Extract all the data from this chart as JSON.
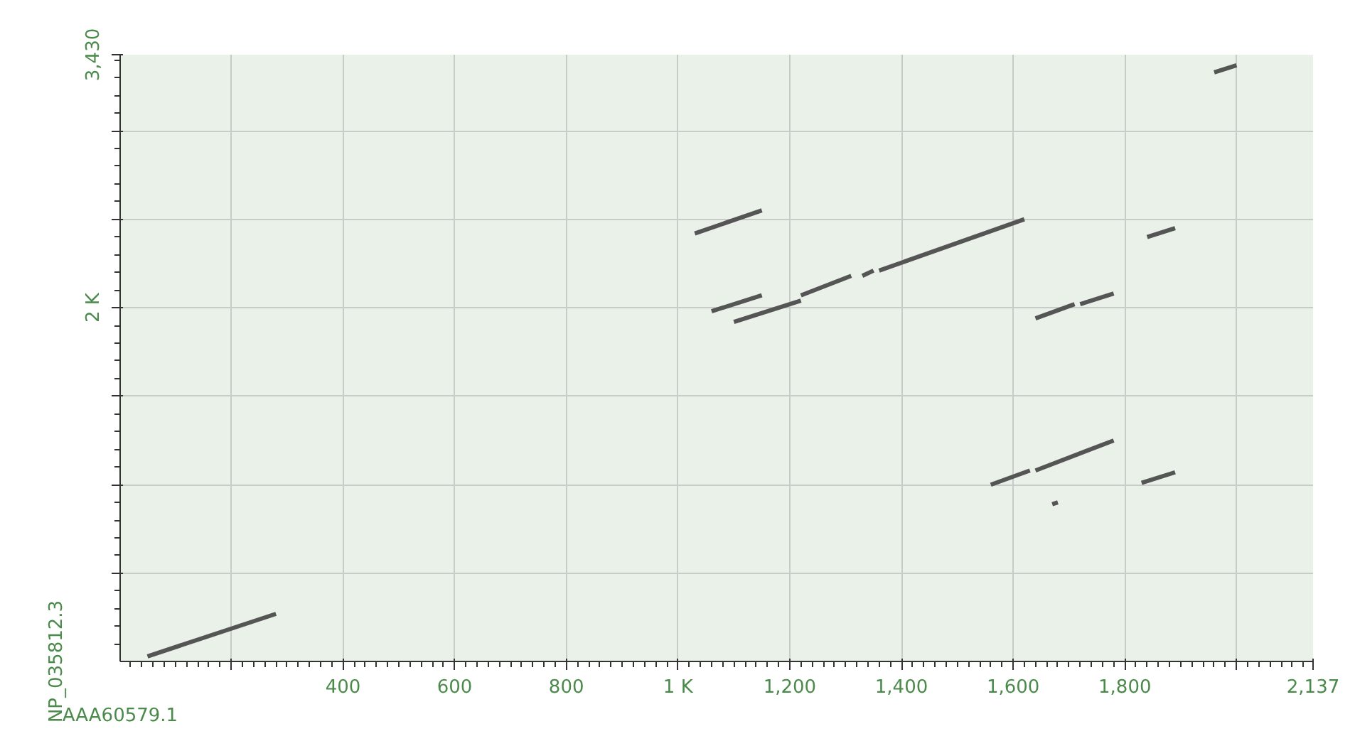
{
  "chart_data": {
    "type": "line",
    "xlim": [
      1,
      2137
    ],
    "ylim": [
      1,
      3430
    ],
    "xlabel": "AAA60579.1",
    "ylabel": "NP_035812.3",
    "xticks": [
      {
        "value": 200,
        "label": null
      },
      400,
      600,
      800,
      {
        "value": 1000,
        "label": "1 K"
      },
      {
        "value": 1200,
        "label": "1,200"
      },
      {
        "value": 1400,
        "label": "1,400"
      },
      {
        "value": 1600,
        "label": "1,600"
      },
      {
        "value": 1800,
        "label": "1,800"
      },
      {
        "value": 2000,
        "label": null
      },
      {
        "value": 2137,
        "label": "2,137"
      }
    ],
    "yticks": [
      {
        "value": 500,
        "label": null
      },
      {
        "value": 1000,
        "label": null
      },
      {
        "value": 1500,
        "label": null
      },
      {
        "value": 2000,
        "label": "2 K"
      },
      {
        "value": 2500,
        "label": null
      },
      {
        "value": 3000,
        "label": null
      },
      {
        "value": 3430,
        "label": "3,430"
      }
    ],
    "grid": true,
    "marker": "none",
    "line_style": "solid",
    "series": [
      {
        "color": "#555555",
        "x": [
          50,
          280
        ],
        "values": [
          30,
          270
        ]
      },
      {
        "color": "#555555",
        "x": [
          1030,
          1150
        ],
        "values": [
          2420,
          2550
        ]
      },
      {
        "color": "#555555",
        "x": [
          1060,
          1150
        ],
        "values": [
          1980,
          2070
        ]
      },
      {
        "color": "#555555",
        "x": [
          1100,
          1220
        ],
        "values": [
          1920,
          2040
        ]
      },
      {
        "color": "#555555",
        "x": [
          1220,
          1310
        ],
        "values": [
          2070,
          2180
        ]
      },
      {
        "color": "#555555",
        "x": [
          1330,
          1350
        ],
        "values": [
          2180,
          2210
        ]
      },
      {
        "color": "#555555",
        "x": [
          1360,
          1620
        ],
        "values": [
          2210,
          2500
        ]
      },
      {
        "color": "#555555",
        "x": [
          1640,
          1710
        ],
        "values": [
          1940,
          2020
        ]
      },
      {
        "color": "#555555",
        "x": [
          1720,
          1780
        ],
        "values": [
          2020,
          2080
        ]
      },
      {
        "color": "#555555",
        "x": [
          1840,
          1890
        ],
        "values": [
          2400,
          2450
        ]
      },
      {
        "color": "#555555",
        "x": [
          1960,
          2000
        ],
        "values": [
          3330,
          3370
        ]
      },
      {
        "color": "#555555",
        "x": [
          1560,
          1630
        ],
        "values": [
          1000,
          1080
        ]
      },
      {
        "color": "#555555",
        "x": [
          1640,
          1780
        ],
        "values": [
          1080,
          1250
        ]
      },
      {
        "color": "#555555",
        "x": [
          1830,
          1890
        ],
        "values": [
          1010,
          1070
        ]
      },
      {
        "color": "#555555",
        "x": [
          1670,
          1680
        ],
        "values": [
          890,
          900
        ]
      }
    ]
  }
}
